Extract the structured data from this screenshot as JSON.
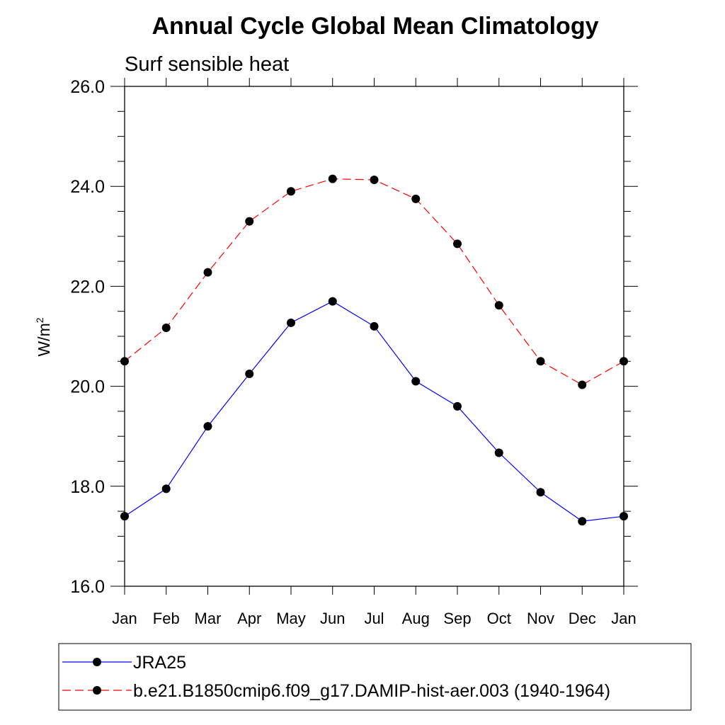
{
  "chart_data": {
    "type": "line",
    "title": "Annual Cycle Global Mean Climatology",
    "subtitle": "Surf sensible heat",
    "ylabel": "W/m",
    "ylabel_superscript": "2",
    "categories": [
      "Jan",
      "Feb",
      "Mar",
      "Apr",
      "May",
      "Jun",
      "Jul",
      "Aug",
      "Sep",
      "Oct",
      "Nov",
      "Dec",
      "Jan"
    ],
    "ylim": [
      16.0,
      26.0
    ],
    "yticks": [
      "16.0",
      "18.0",
      "20.0",
      "22.0",
      "24.0",
      "26.0"
    ],
    "grid": false,
    "legend_position": "bottom",
    "series": [
      {
        "name": "JRA25",
        "color": "#0000ff",
        "style": "solid",
        "values": [
          17.4,
          17.95,
          19.2,
          20.25,
          21.27,
          21.7,
          21.2,
          20.1,
          19.6,
          18.67,
          17.88,
          17.3,
          17.4
        ]
      },
      {
        "name": "b.e21.B1850cmip6.f09_g17.DAMIP-hist-aer.003 (1940-1964)",
        "color": "#ff0000",
        "style": "dashed",
        "values": [
          20.5,
          21.17,
          22.28,
          23.3,
          23.9,
          24.15,
          24.13,
          23.75,
          22.85,
          21.62,
          20.5,
          20.03,
          20.5
        ]
      }
    ]
  }
}
